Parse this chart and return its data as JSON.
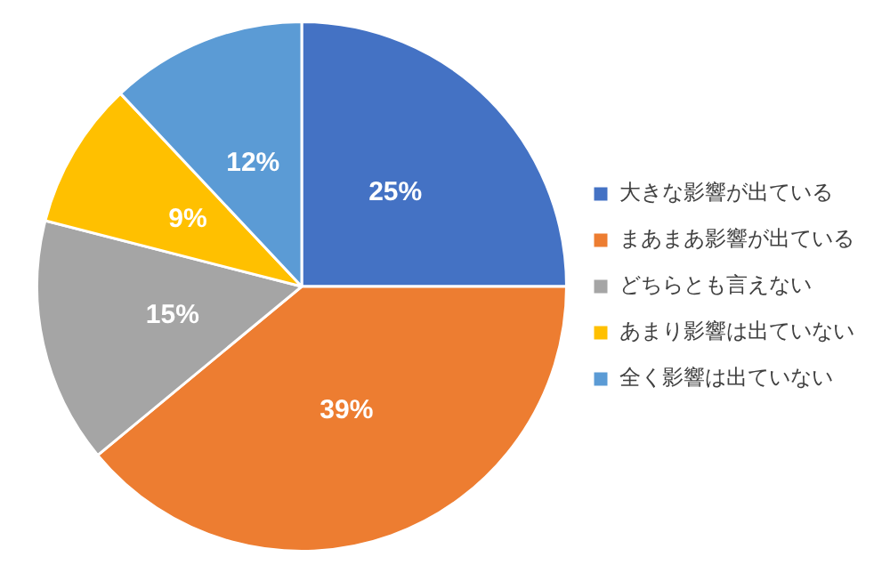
{
  "chart_data": {
    "type": "pie",
    "categories": [
      "大きな影響が出ている",
      "まあまあ影響が出ている",
      "どちらとも言えない",
      "あまり影響は出ていない",
      "全く影響は出ていない"
    ],
    "values": [
      25,
      39,
      15,
      9,
      12
    ],
    "colors": [
      "#4472c4",
      "#ed7d31",
      "#a5a5a5",
      "#ffc000",
      "#5b9bd5"
    ],
    "value_labels": [
      "25%",
      "39%",
      "15%",
      "9%",
      "12%"
    ],
    "legend": "right"
  }
}
